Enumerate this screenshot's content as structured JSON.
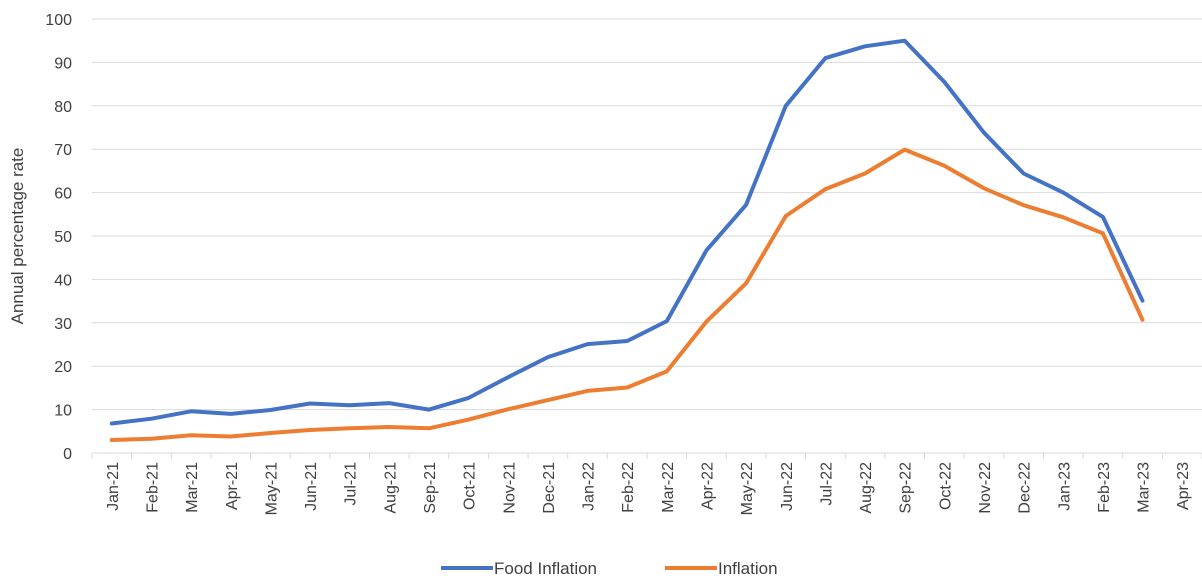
{
  "chart_data": {
    "type": "line",
    "title": "",
    "xlabel": "",
    "ylabel": "Annual percentage rate",
    "ylim": [
      0,
      100
    ],
    "yticks": [
      0,
      10,
      20,
      30,
      40,
      50,
      60,
      70,
      80,
      90,
      100
    ],
    "grid": true,
    "legend_position": "bottom",
    "categories": [
      "Jan-21",
      "Feb-21",
      "Mar-21",
      "Apr-21",
      "May-21",
      "Jun-21",
      "Jul-21",
      "Aug-21",
      "Sep-21",
      "Oct-21",
      "Nov-21",
      "Dec-21",
      "Jan-22",
      "Feb-22",
      "Mar-22",
      "Apr-22",
      "May-22",
      "Jun-22",
      "Jul-22",
      "Aug-22",
      "Sep-22",
      "Oct-22",
      "Nov-22",
      "Dec-22",
      "Jan-23",
      "Feb-23",
      "Mar-23",
      "Apr-23"
    ],
    "series": [
      {
        "name": "Food Inflation",
        "color": "#4472C4",
        "values": [
          6.8,
          7.9,
          9.6,
          9.0,
          9.9,
          11.4,
          11.0,
          11.5,
          10.0,
          12.7,
          17.5,
          22.1,
          25.1,
          25.8,
          30.4,
          46.7,
          57.2,
          80.0,
          91.0,
          93.7,
          95.0,
          85.5,
          73.8,
          64.4,
          60.0,
          54.4,
          35.1,
          null
        ]
      },
      {
        "name": "Inflation",
        "color": "#ED7D31",
        "values": [
          3.0,
          3.3,
          4.1,
          3.8,
          4.6,
          5.3,
          5.7,
          6.0,
          5.7,
          7.7,
          10.1,
          12.2,
          14.3,
          15.1,
          18.8,
          30.3,
          39.1,
          54.6,
          60.8,
          64.4,
          69.9,
          66.2,
          61.0,
          57.1,
          54.3,
          50.6,
          30.7,
          null
        ]
      }
    ]
  }
}
